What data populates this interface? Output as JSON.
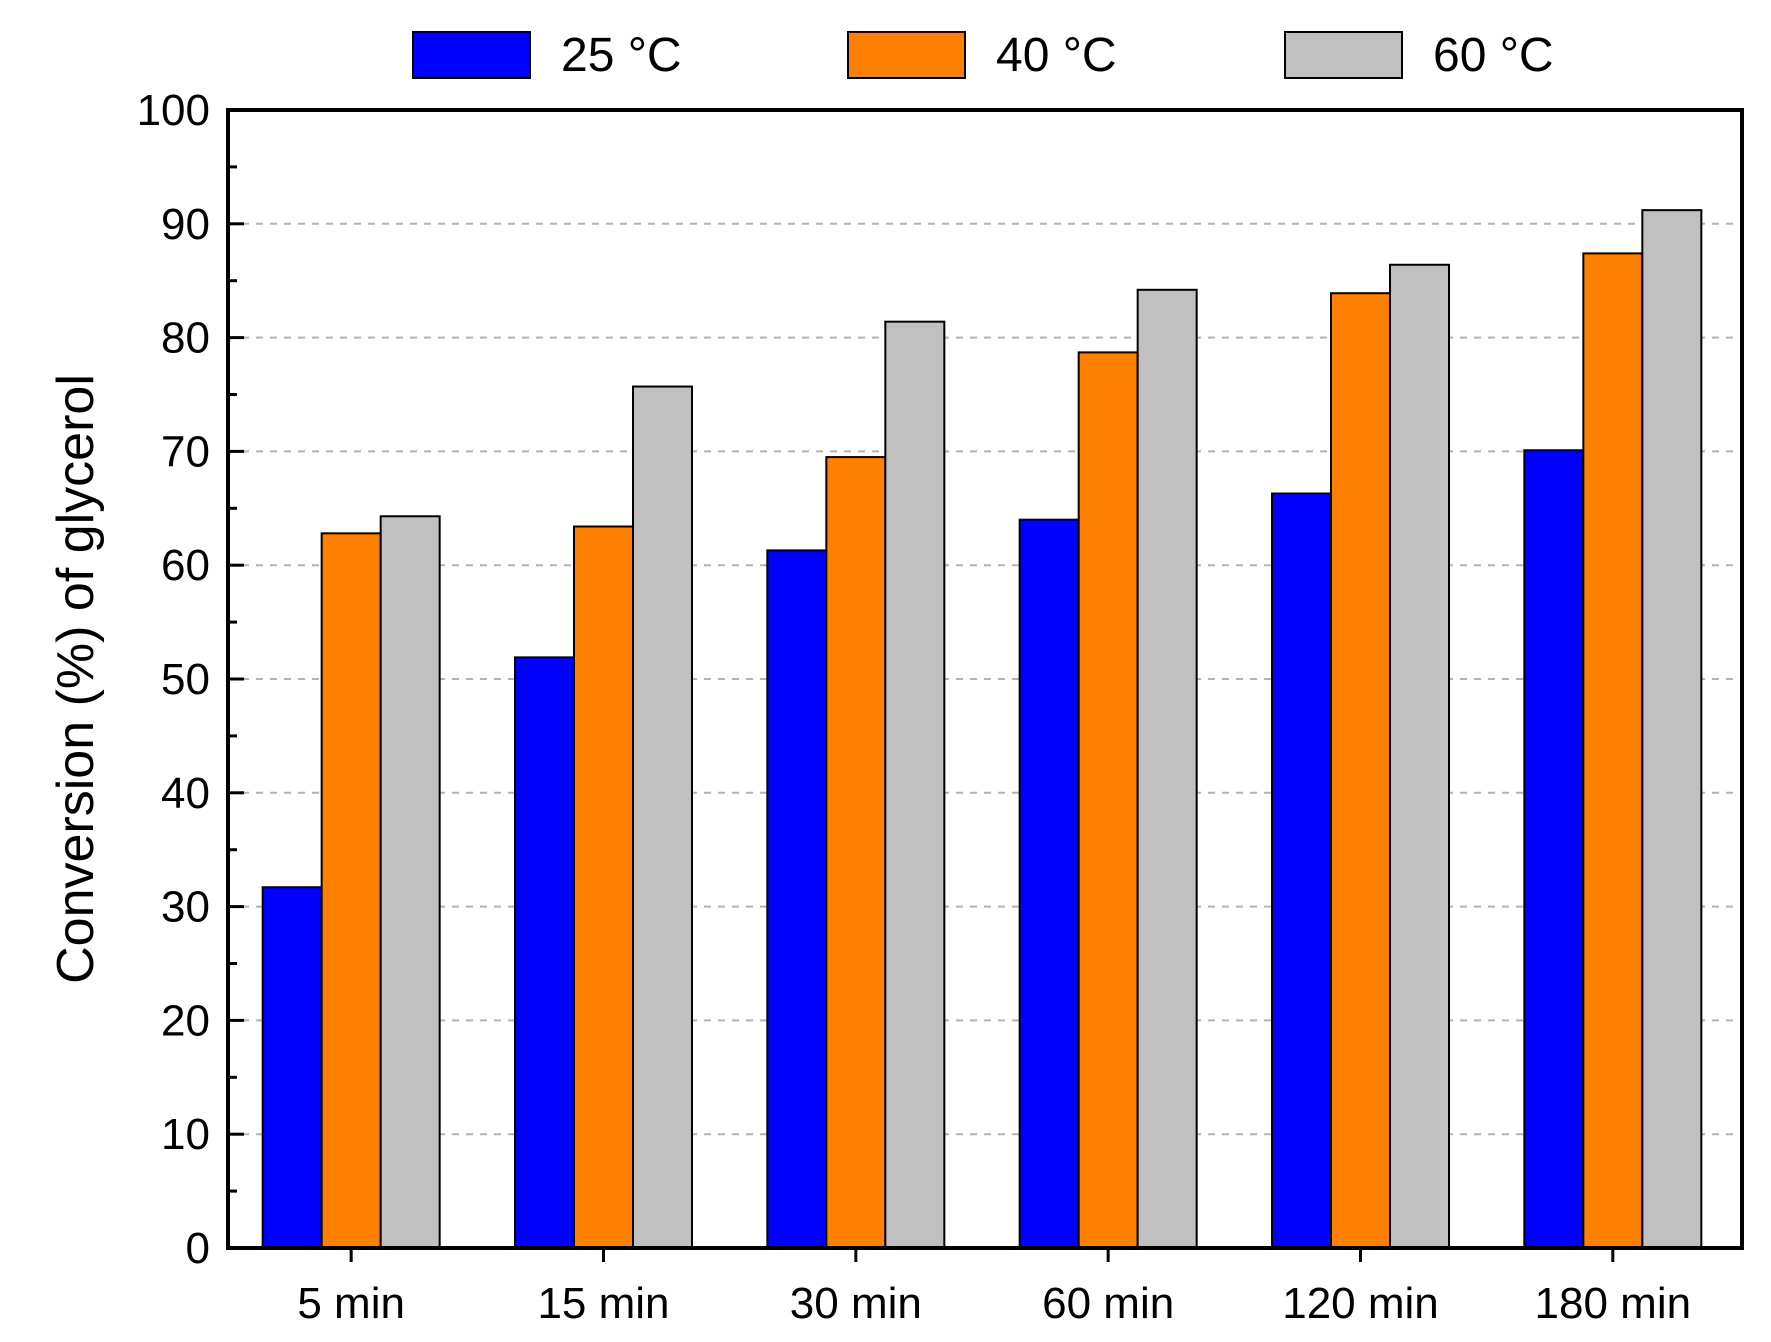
{
  "chart_data": {
    "type": "bar",
    "title": "",
    "xlabel": "",
    "ylabel": "Conversion (%) of glycerol",
    "categories": [
      "5 min",
      "15 min",
      "30 min",
      "60 min",
      "120 min",
      "180 min"
    ],
    "series": [
      {
        "name": "25 °C",
        "color": "#0000ff",
        "values": [
          31.7,
          51.9,
          61.3,
          64.0,
          66.3,
          70.1
        ]
      },
      {
        "name": "40 °C",
        "color": "#ff7f00",
        "values": [
          62.8,
          63.4,
          69.5,
          78.7,
          83.9,
          87.4
        ]
      },
      {
        "name": "60 °C",
        "color": "#c0c0c0",
        "values": [
          64.3,
          75.7,
          81.4,
          84.2,
          86.4,
          91.2
        ]
      }
    ],
    "ylim": [
      0,
      100
    ],
    "yticks": [
      0,
      10,
      20,
      30,
      40,
      50,
      60,
      70,
      80,
      90,
      100
    ],
    "grid": true,
    "legend_position": "top"
  }
}
